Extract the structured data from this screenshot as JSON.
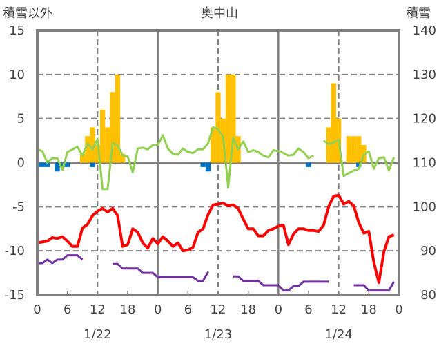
{
  "chart_data": {
    "type": "bar+line",
    "title": "奥中山",
    "ylabel_left": "積雪以外",
    "ylabel_right": "積雪",
    "ylim_left": [
      -15,
      15
    ],
    "ylim_right": [
      80,
      140
    ],
    "yticks_left": [
      "15",
      "10",
      "5",
      "0",
      "-5",
      "-10",
      "-15"
    ],
    "yticks_right": [
      "140",
      "130",
      "120",
      "110",
      "100",
      "90",
      "80"
    ],
    "xticks": [
      "0",
      "6",
      "12",
      "18",
      "0",
      "6",
      "12",
      "18",
      "0",
      "6",
      "12",
      "18",
      "0"
    ],
    "day_labels": [
      "1/22",
      "1/23",
      "1/24"
    ],
    "hours": 72,
    "colors": {
      "bar_pos": "#FFC000",
      "bar_neg": "#0070C0",
      "red": "#FF0000",
      "green": "#92D050",
      "purple": "#7030A0",
      "grid": "#808080"
    },
    "bars_positive": {
      "9": 1,
      "10": 3,
      "11": 4,
      "12": 2,
      "13": 6,
      "14": 4,
      "15": 8,
      "16": 10,
      "17": 1,
      "35": 4,
      "36": 8,
      "37": 5,
      "38": 10,
      "39": 10,
      "40": 3,
      "58": 4,
      "59": 9,
      "60": 5,
      "62": 3,
      "63": 3,
      "64": 3,
      "65": 2
    },
    "bars_negative": {
      "0": -0.5,
      "1": -0.5,
      "2": -0.5,
      "4": -1,
      "5": -0.5,
      "6": -0.5,
      "11": -0.5,
      "33": -0.5,
      "34": -1,
      "54": -0.5,
      "64": -0.5
    },
    "series": [
      {
        "name": "red",
        "values": [
          -9.1,
          -9.0,
          -8.9,
          -8.5,
          -8.6,
          -8.4,
          -8.9,
          -9.5,
          -9.5,
          -7.4,
          -7.0,
          -6.0,
          -5.5,
          -5.2,
          -5.6,
          -5.2,
          -6.0,
          -9.5,
          -9.3,
          -7.5,
          -7.9,
          -9.1,
          -9.7,
          -8.6,
          -9.2,
          -8.4,
          -8.9,
          -9.5,
          -9.1,
          -10.0,
          -9.9,
          -9.6,
          -7.9,
          -7.5,
          -5.9,
          -4.8,
          -4.7,
          -4.6,
          -4.9,
          -4.8,
          -5.2,
          -6.4,
          -7.5,
          -7.5,
          -8.3,
          -8.3,
          -7.7,
          -7.5,
          -7.2,
          -7.1,
          -9.3,
          -8.1,
          -7.5,
          -7.5,
          -7.7,
          -7.7,
          -7.8,
          -7.1,
          -5.0,
          -3.8,
          -3.7,
          -4.7,
          -4.4,
          -4.9,
          -6.8,
          -8.0,
          -7.8,
          -11.3,
          -13.6,
          -10.1,
          -8.4,
          -8.2
        ]
      },
      {
        "name": "green",
        "values": [
          1.5,
          1.3,
          0,
          0.5,
          0.5,
          -0.8,
          1.2,
          1.5,
          1.8,
          0.8,
          2.2,
          1.5,
          2.7,
          -3,
          -3,
          2.2,
          2.0,
          0.8,
          0.7,
          -1.1,
          1.6,
          1.7,
          1.5,
          2.0,
          2.0,
          3.1,
          1.6,
          1.0,
          0.9,
          1.6,
          1.2,
          1.1,
          1.5,
          1.5,
          2.2,
          4.0,
          3.8,
          2.9,
          -2.8,
          2.8,
          1.5,
          2.4,
          1.2,
          1.4,
          1.2,
          0.8,
          0.6,
          1.4,
          1.3,
          1.1,
          0.8,
          0.9,
          1.6,
          1.2,
          0.5,
          0.8,
          null,
          2.5,
          2.1,
          2.3,
          2.6,
          -1.5,
          -1.2,
          -0.9,
          -0.7,
          0.9,
          1.3,
          -0.7,
          0.5,
          0.6,
          -0.9,
          0.6
        ]
      },
      {
        "name": "purple",
        "values": [
          -11.4,
          -11.4,
          -11,
          -11.4,
          -11,
          -11,
          -10.5,
          -10.5,
          -10.5,
          -11,
          null,
          null,
          null,
          null,
          null,
          -11.5,
          -11.5,
          -12,
          -12,
          -12,
          -12,
          -12.5,
          -12.5,
          -12.5,
          -13,
          -13,
          -13,
          -13,
          -13,
          -13,
          -13,
          -13,
          -13.4,
          -13.4,
          -12.4,
          null,
          null,
          null,
          null,
          -12.9,
          -12.9,
          -13.4,
          -13.4,
          -13.4,
          -13.4,
          -13.9,
          -13.9,
          -13.9,
          -13.9,
          -14.5,
          -14.5,
          -14,
          -14,
          -13.5,
          -13.5,
          -13.5,
          -13.5,
          -13.5,
          -13.5,
          null,
          null,
          null,
          null,
          -13.9,
          -13.9,
          -13.9,
          -14.5,
          -14.5,
          -14.5,
          -14.5,
          -14.5,
          -13.5
        ]
      }
    ]
  }
}
